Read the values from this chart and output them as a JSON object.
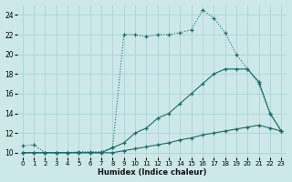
{
  "xlabel": "Humidex (Indice chaleur)",
  "bg_color": "#cce8e8",
  "line_color": "#1a6b6b",
  "grid_color": "#aacfcf",
  "xlim": [
    -0.5,
    23.5
  ],
  "ylim": [
    9.5,
    25.0
  ],
  "yticks": [
    10,
    12,
    14,
    16,
    18,
    20,
    22,
    24
  ],
  "xticks": [
    0,
    1,
    2,
    3,
    4,
    5,
    6,
    7,
    8,
    9,
    10,
    11,
    12,
    13,
    14,
    15,
    16,
    17,
    18,
    19,
    20,
    21,
    22,
    23
  ],
  "line1_x": [
    0,
    1,
    2,
    3,
    4,
    5,
    6,
    7,
    8,
    9,
    10,
    11,
    12,
    13,
    14,
    15,
    16,
    17,
    18,
    19,
    20,
    21,
    22,
    23
  ],
  "line1_y": [
    10.7,
    10.8,
    10.0,
    10.0,
    10.0,
    10.1,
    10.1,
    10.1,
    10.5,
    22.0,
    22.0,
    21.8,
    22.0,
    22.0,
    22.2,
    22.5,
    24.5,
    23.7,
    22.2,
    20.0,
    18.5,
    17.0,
    14.0,
    12.2
  ],
  "line2_x": [
    0,
    1,
    2,
    3,
    4,
    5,
    6,
    7,
    8,
    9,
    10,
    11,
    12,
    13,
    14,
    15,
    16,
    17,
    18,
    19,
    20,
    21,
    22,
    23
  ],
  "line2_y": [
    10.0,
    10.0,
    10.0,
    10.0,
    10.0,
    10.0,
    10.0,
    10.0,
    10.5,
    11.0,
    12.0,
    12.5,
    13.5,
    14.0,
    15.0,
    16.0,
    17.0,
    18.0,
    18.5,
    18.5,
    18.5,
    17.2,
    14.0,
    12.2
  ],
  "line3_x": [
    0,
    1,
    2,
    3,
    4,
    5,
    6,
    7,
    8,
    9,
    10,
    11,
    12,
    13,
    14,
    15,
    16,
    17,
    18,
    19,
    20,
    21,
    22,
    23
  ],
  "line3_y": [
    10.0,
    10.0,
    10.0,
    10.0,
    10.0,
    10.0,
    10.0,
    10.0,
    10.0,
    10.2,
    10.4,
    10.6,
    10.8,
    11.0,
    11.3,
    11.5,
    11.8,
    12.0,
    12.2,
    12.4,
    12.6,
    12.8,
    12.5,
    12.2
  ],
  "line1_dotted": true
}
